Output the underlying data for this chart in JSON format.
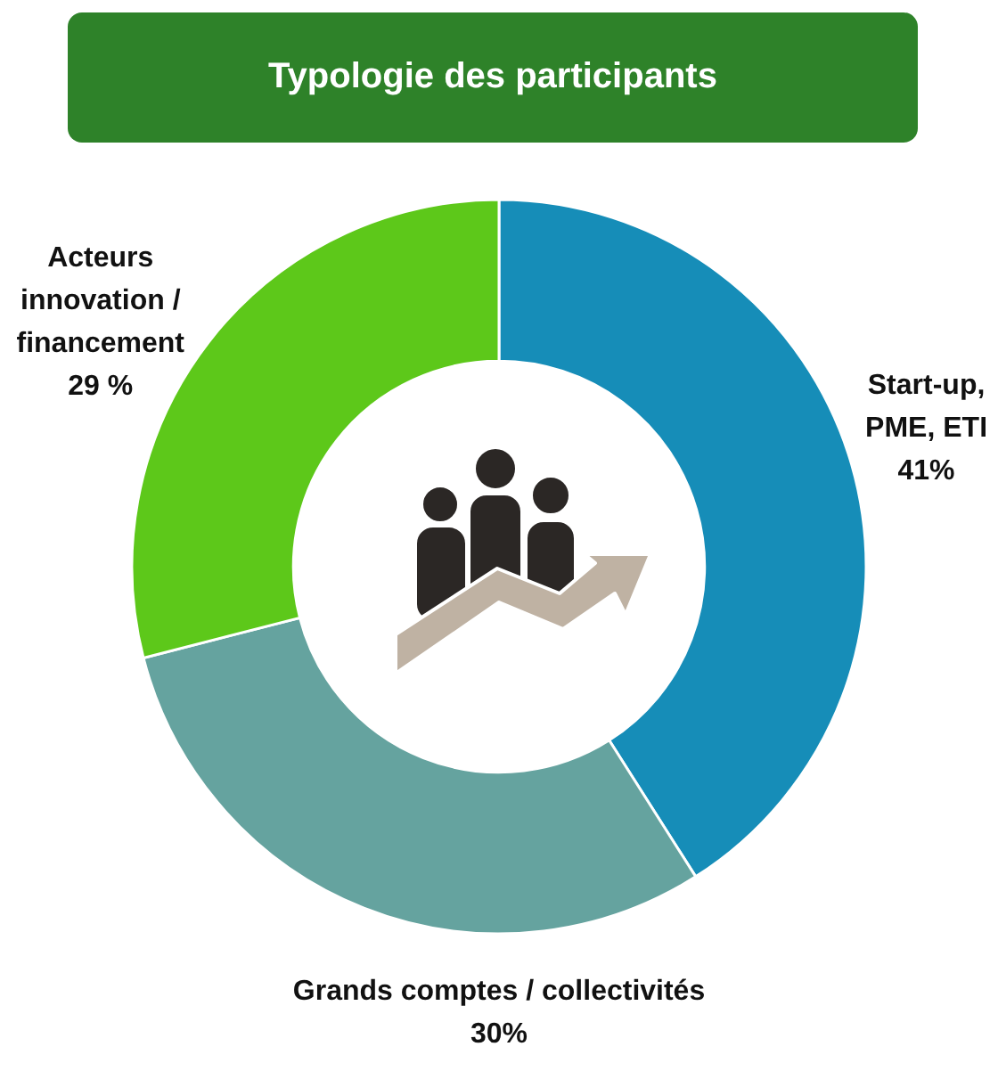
{
  "chart_data": {
    "type": "donut",
    "title": "Typologie des participants",
    "categories": [
      "Start-up, PME, ETI",
      "Grands comptes / collectivités",
      "Acteurs innovation / financement"
    ],
    "values": [
      41,
      30,
      29
    ],
    "colors": [
      "#168db8",
      "#65a39f",
      "#5dc81a"
    ],
    "value_labels": [
      "41%",
      "30%",
      "29 %"
    ]
  }
}
